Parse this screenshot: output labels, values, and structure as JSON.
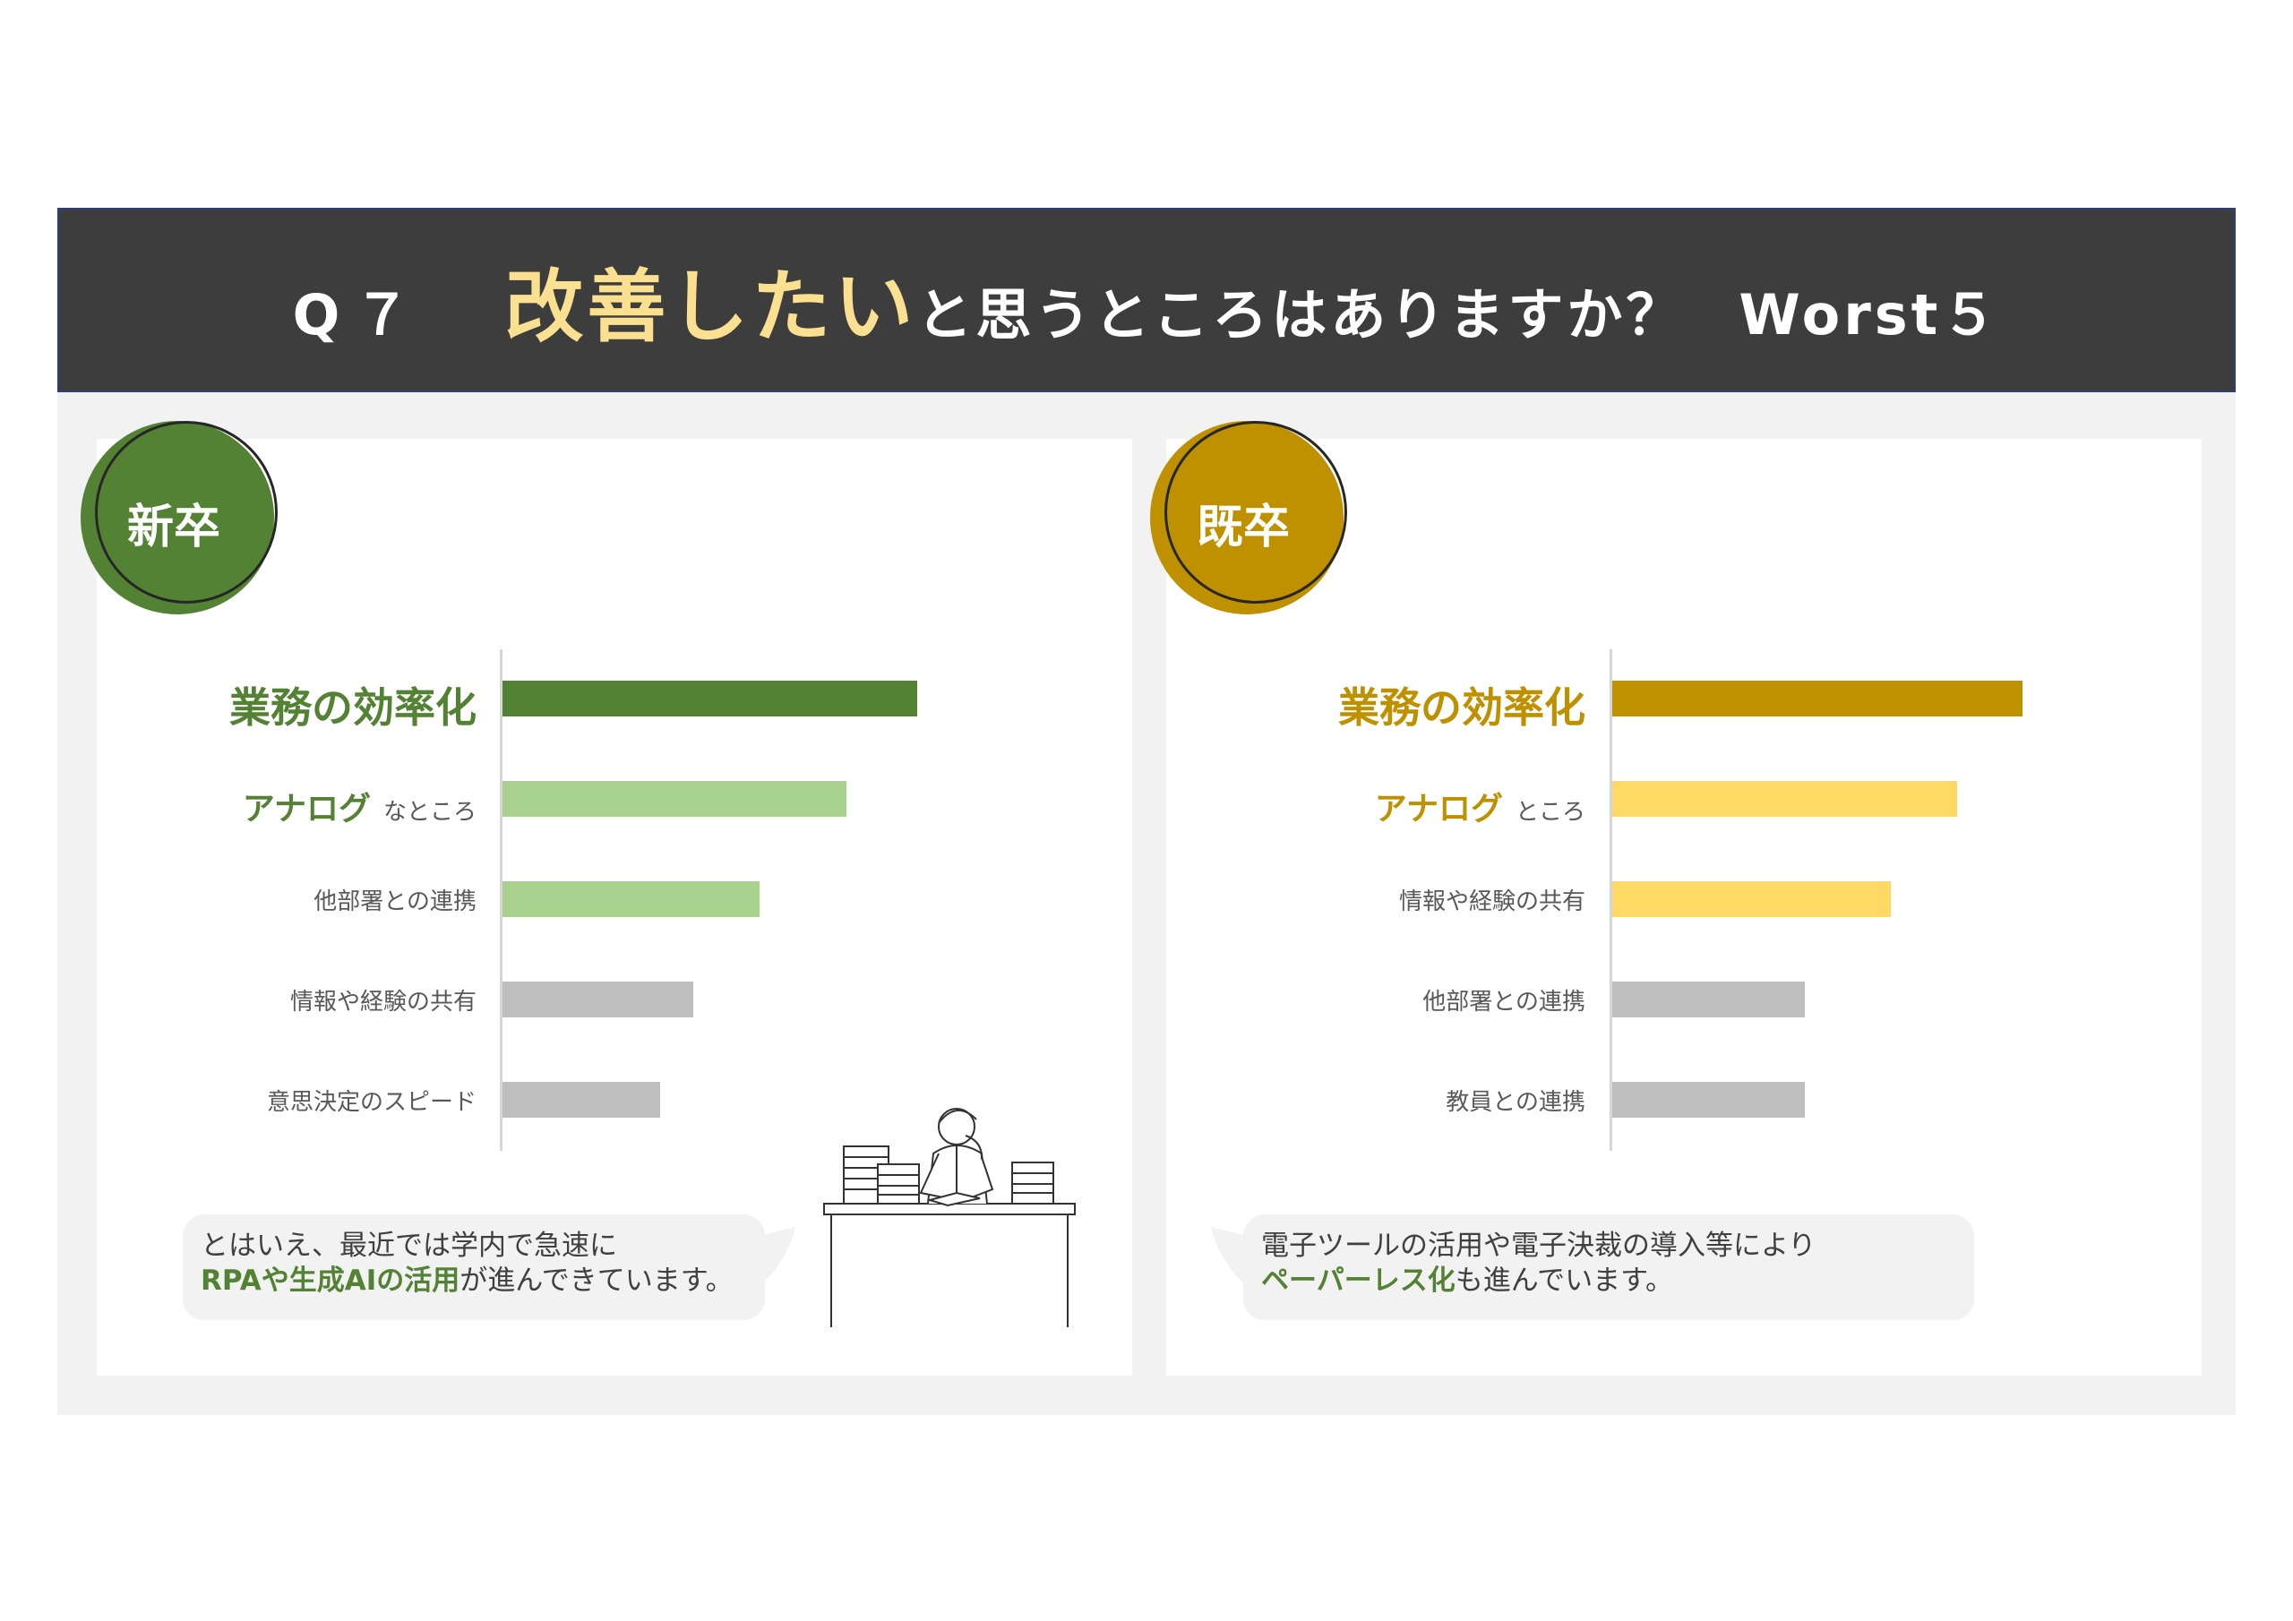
{
  "header": {
    "q": "Q７",
    "highlight": "改善したい",
    "rest": "と思うところはありますか？",
    "worst": "Worst５"
  },
  "colors": {
    "header_bg": "#3d3d3d",
    "highlight": "#fbe091",
    "green_dark": "#548235",
    "green_light": "#a9d18e",
    "gold_dark": "#bf9000",
    "gold_light": "#ffd966",
    "gray_bar": "#bfbfbf"
  },
  "left": {
    "badge": "新卒",
    "bubble_line1": "とはいえ、最近では学内で急速に",
    "bubble_line2_em": "RPAや生成AIの活用",
    "bubble_line2_rest": "が進んできています。",
    "illustration": "worried-office-worker-at-desk"
  },
  "right": {
    "badge": "既卒",
    "bubble_line1": "電子ツールの活用や電子決裁の導入等により",
    "bubble_line2_em": "ペーパーレス化",
    "bubble_line2_rest": "も進んでいます。"
  },
  "chart_data": [
    {
      "type": "bar",
      "orientation": "horizontal",
      "group": "新卒",
      "categories": [
        "業務の効率化",
        "アナログなところ",
        "他部署との連携",
        "情報や経験の共有",
        "意思決定のスピード"
      ],
      "label_parts": [
        {
          "em": "業務の効率化",
          "sm": ""
        },
        {
          "em": "アナログ",
          "sm": "なところ"
        },
        {
          "em": "",
          "sm": "他部署との連携"
        },
        {
          "em": "",
          "sm": "情報や経験の共有"
        },
        {
          "em": "",
          "sm": "意思決定のスピード"
        }
      ],
      "values": [
        100,
        83,
        62,
        46,
        38
      ],
      "value_unit": "relative bar length (no axis printed)",
      "bar_colors": [
        "#548235",
        "#a9d18e",
        "#a9d18e",
        "#bfbfbf",
        "#bfbfbf"
      ],
      "label_colors": [
        "#548235",
        "#548235",
        "#595959",
        "#595959",
        "#595959"
      ],
      "grid": false,
      "legend": "none"
    },
    {
      "type": "bar",
      "orientation": "horizontal",
      "group": "既卒",
      "categories": [
        "業務の効率化",
        "アナログところ",
        "情報や経験の共有",
        "他部署との連携",
        "教員との連携"
      ],
      "label_parts": [
        {
          "em": "業務の効率化",
          "sm": ""
        },
        {
          "em": "アナログ",
          "sm": "ところ"
        },
        {
          "em": "",
          "sm": "情報や経験の共有"
        },
        {
          "em": "",
          "sm": "他部署との連携"
        },
        {
          "em": "",
          "sm": "教員との連携"
        }
      ],
      "values": [
        100,
        84,
        68,
        47,
        47
      ],
      "value_unit": "relative bar length (no axis printed)",
      "bar_colors": [
        "#bf9000",
        "#ffd966",
        "#ffd966",
        "#bfbfbf",
        "#bfbfbf"
      ],
      "label_colors": [
        "#bf9000",
        "#bf9000",
        "#595959",
        "#595959",
        "#595959"
      ],
      "grid": false,
      "legend": "none"
    }
  ]
}
